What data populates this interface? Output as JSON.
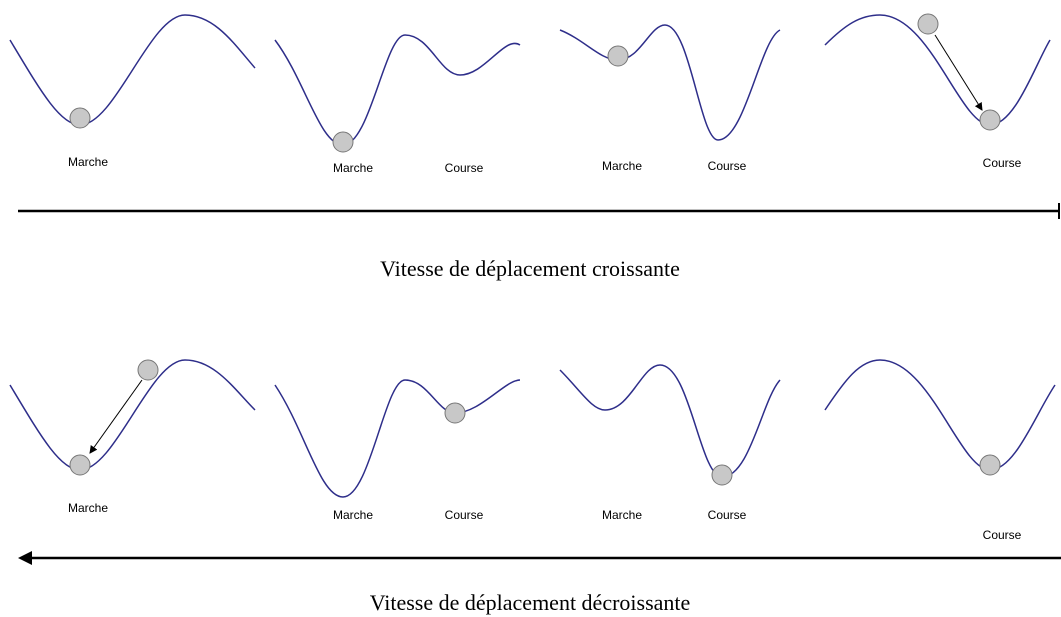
{
  "rows": [
    {
      "panels": [
        {
          "labels": [
            "Marche"
          ]
        },
        {
          "labels": [
            "Marche",
            "Course"
          ]
        },
        {
          "labels": [
            "Marche",
            "Course"
          ]
        },
        {
          "labels": [
            "Course"
          ]
        }
      ],
      "caption": "Vitesse de déplacement croissante"
    },
    {
      "panels": [
        {
          "labels": [
            "Marche"
          ]
        },
        {
          "labels": [
            "Marche",
            "Course"
          ]
        },
        {
          "labels": [
            "Marche",
            "Course"
          ]
        },
        {
          "labels": [
            "Course"
          ]
        }
      ],
      "caption": "Vitesse de déplacement décroissante"
    }
  ]
}
